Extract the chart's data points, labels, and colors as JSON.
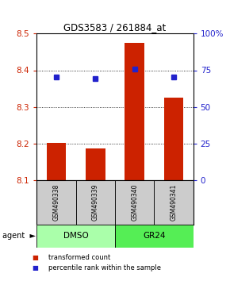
{
  "title": "GDS3583 / 261884_at",
  "samples": [
    "GSM490338",
    "GSM490339",
    "GSM490340",
    "GSM490341"
  ],
  "bar_values": [
    8.202,
    8.187,
    8.475,
    8.325
  ],
  "bar_bottom": 8.1,
  "percentile_values": [
    70.5,
    69.5,
    76.0,
    70.5
  ],
  "percentile_scale_min": 0,
  "percentile_scale_max": 100,
  "ylim": [
    8.1,
    8.5
  ],
  "yticks": [
    8.1,
    8.2,
    8.3,
    8.4,
    8.5
  ],
  "right_yticks": [
    0,
    25,
    50,
    75,
    100
  ],
  "right_yticklabels": [
    "0",
    "25",
    "50",
    "75",
    "100%"
  ],
  "bar_color": "#cc2200",
  "dot_color": "#2222cc",
  "groups": [
    {
      "label": "DMSO",
      "color": "#aaffaa"
    },
    {
      "label": "GR24",
      "color": "#55ee55"
    }
  ],
  "group_label": "agent",
  "sample_box_color": "#cccccc",
  "bar_width": 0.5,
  "grid_yticks": [
    8.2,
    8.3,
    8.4
  ],
  "legend_items": [
    {
      "label": "transformed count",
      "color": "#cc2200"
    },
    {
      "label": "percentile rank within the sample",
      "color": "#2222cc"
    }
  ]
}
